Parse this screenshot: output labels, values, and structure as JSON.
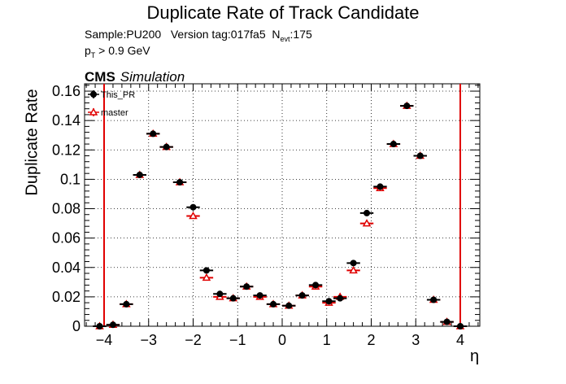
{
  "chart_data": {
    "type": "scatter",
    "title": "Duplicate Rate of Track Candidate",
    "subtitle": {
      "sample": "Sample:PU200",
      "version": "Version tag:017fa5",
      "nevt_prefix": "N",
      "nevt_sub": "evt",
      "nevt_value": ":175",
      "pt_prefix": "p",
      "pt_sub": "T",
      "pt_cut": " > 0.9 GeV"
    },
    "cms_label": "CMS",
    "simulation_label": "Simulation",
    "xlabel": "η",
    "ylabel": "Duplicate Rate",
    "xlim": [
      -4.5,
      4.5
    ],
    "ylim": [
      0,
      0.165
    ],
    "x_ticks": [
      -4,
      -3,
      -2,
      -1,
      0,
      1,
      2,
      3,
      4
    ],
    "x_tick_labels": [
      "−4",
      "−3",
      "−2",
      "−1",
      "0",
      "1",
      "2",
      "3",
      "4"
    ],
    "y_ticks": [
      0,
      0.02,
      0.04,
      0.06,
      0.08,
      0.1,
      0.12,
      0.14,
      0.16
    ],
    "y_tick_labels": [
      "0",
      "0.02",
      "0.04",
      "0.06",
      "0.08",
      "0.1",
      "0.12",
      "0.14",
      "0.16"
    ],
    "grid": true,
    "legend_position": "top-left",
    "vertical_lines": [
      -4,
      4
    ],
    "vertical_line_color": "#e00000",
    "x": [
      -4.1,
      -3.8,
      -3.5,
      -3.2,
      -2.9,
      -2.6,
      -2.3,
      -2.0,
      -1.7,
      -1.4,
      -1.1,
      -0.8,
      -0.5,
      -0.2,
      0.15,
      0.45,
      0.75,
      1.05,
      1.3,
      1.6,
      1.9,
      2.2,
      2.5,
      2.8,
      3.1,
      3.4,
      3.7,
      4.0
    ],
    "xerr": 0.15,
    "series": [
      {
        "name": "This_PR",
        "color": "#000000",
        "marker": "circle",
        "values": [
          0.0,
          0.001,
          0.015,
          0.103,
          0.131,
          0.122,
          0.098,
          0.081,
          0.038,
          0.022,
          0.019,
          0.027,
          0.021,
          0.015,
          0.014,
          0.021,
          0.028,
          0.017,
          0.019,
          0.043,
          0.077,
          0.095,
          0.124,
          0.15,
          0.116,
          0.018,
          0.003,
          0.0
        ]
      },
      {
        "name": "master",
        "color": "#e00000",
        "marker": "open-triangle",
        "values": [
          0.0,
          0.001,
          0.015,
          0.103,
          0.131,
          0.122,
          0.098,
          0.075,
          0.033,
          0.02,
          0.019,
          0.027,
          0.02,
          0.015,
          0.014,
          0.021,
          0.027,
          0.016,
          0.02,
          0.038,
          0.07,
          0.094,
          0.124,
          0.15,
          0.116,
          0.018,
          0.003,
          0.0
        ]
      }
    ]
  }
}
